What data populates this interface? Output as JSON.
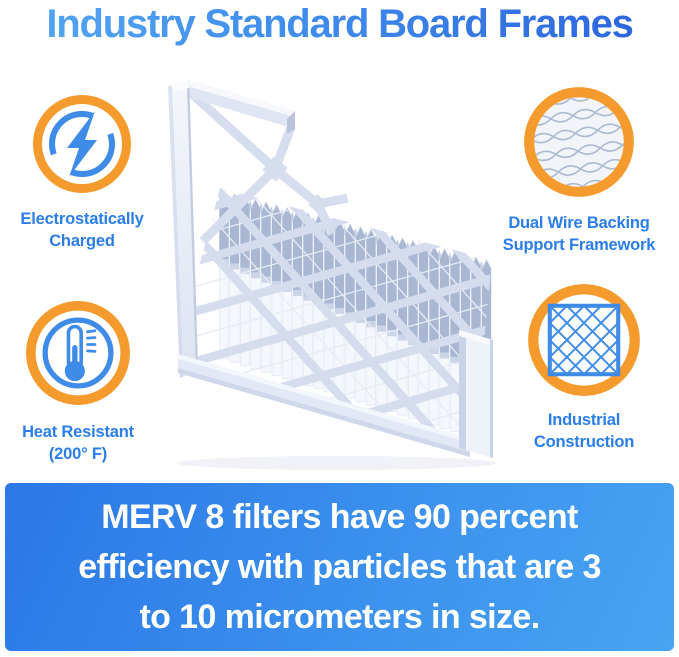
{
  "title": "Industry Standard Board Frames",
  "features": [
    {
      "id": "electrostatically-charged",
      "icon": "lightning-bolt-icon",
      "line1": "Electrostatically",
      "line2": "Charged"
    },
    {
      "id": "dual-wire-backing",
      "icon": "wire-mesh-icon",
      "line1": "Dual Wire Backing",
      "line2": "Support Framework"
    },
    {
      "id": "heat-resistant",
      "icon": "thermometer-icon",
      "line1": "Heat Resistant",
      "line2": "(200° F)"
    },
    {
      "id": "industrial-construction",
      "icon": "lattice-grid-icon",
      "line1": "Industrial",
      "line2": "Construction"
    }
  ],
  "banner": {
    "lines": [
      "MERV 8 filters have 90 percent",
      "efficiency with particles that are 3",
      "to 10 micrometers in size."
    ]
  },
  "product": {
    "alt": "White pleated air filter with industry standard board frame"
  },
  "colors": {
    "accent_orange": "#F59B2D",
    "icon_blue": "#3F8BE8",
    "label_blue": "#2B7DE9",
    "title_gradient_start": "#55A7F2",
    "title_gradient_end": "#2B61DB",
    "banner_gradient_start": "#2B77E6",
    "banner_gradient_end": "#47A4F2",
    "banner_text": "#FFFFFF"
  }
}
